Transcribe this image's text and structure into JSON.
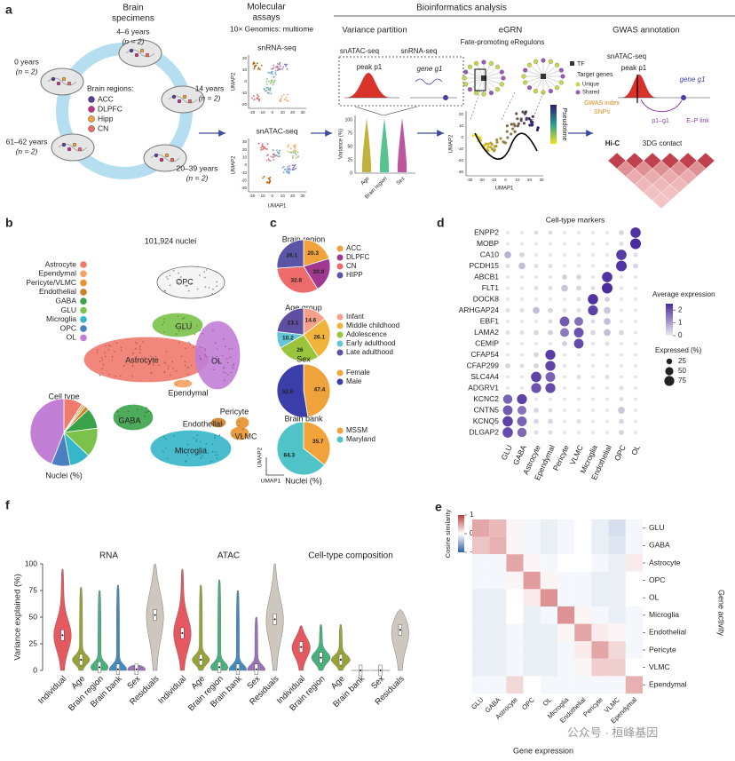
{
  "panel_a": {
    "label": "a",
    "specimens_title": [
      "Brain",
      "specimens"
    ],
    "groups": [
      {
        "age": "4–6 years",
        "n": "(n = 2)"
      },
      {
        "age": "0 years",
        "n": "(n = 2)"
      },
      {
        "age": "14 years",
        "n": "(n = 2)"
      },
      {
        "age": "61–62 years",
        "n": "(n = 2)"
      },
      {
        "age": "20–39 years",
        "n": "(n = 2)"
      }
    ],
    "regions_title": "Brain regions:",
    "regions": [
      {
        "name": "ACC",
        "color": "#5b3e96"
      },
      {
        "name": "DLPFC",
        "color": "#c2338a"
      },
      {
        "name": "Hipp",
        "color": "#f2a23a"
      },
      {
        "name": "CN",
        "color": "#ee6b6b"
      }
    ],
    "assays_title": [
      "Molecular",
      "assays"
    ],
    "platform": "10× Genomics: multiome",
    "umaps": [
      {
        "title": "snRNA-seq",
        "xticks": [
          -20,
          -10,
          0,
          10,
          20,
          30
        ],
        "yticks": [
          -20,
          -10,
          0,
          10,
          20
        ]
      },
      {
        "title": "snATAC-seq",
        "xticks": [
          -20,
          -10,
          0,
          10,
          20,
          30
        ],
        "yticks": [
          -30,
          -20,
          -10,
          0,
          10,
          20,
          30
        ]
      }
    ],
    "umap_x": "UMAP1",
    "umap_y": "UMAP2",
    "bio_title": "Bioinformatics analysis",
    "vp_title": "Variance partition",
    "vp_atac": "snATAC-seq",
    "vp_rna": "snRNA-seq",
    "peak": "peak p1",
    "gene": "gene g1",
    "vp_ylabel": "Variance (%)",
    "vp_yticks": [
      0,
      25,
      50,
      75,
      100
    ],
    "vp_categories": [
      "Age",
      "Brain region",
      "Sex"
    ],
    "egrn_title": "eGRN",
    "egrn_sub": "Fate-promoting eRegulons",
    "tf": "TF",
    "targets": "Target genes",
    "unique": "Unique",
    "shared": "Shared",
    "pseudotime": "Pseudotime",
    "egrn_xticks": [
      -30,
      -20,
      -10,
      0,
      10,
      20,
      30
    ],
    "egrn_yticks": [
      -30,
      -20,
      -10,
      0,
      10,
      20
    ],
    "gwas_title": "GWAS annotation",
    "gwas_atac": "snATAC-seq",
    "gwas_peak": "peak p1",
    "gwas_gene": "gene g1",
    "snps": [
      "GWAS index",
      "SNPs"
    ],
    "p1g1": "p1–g1",
    "ep": "E–P link",
    "hic": "Hi-C",
    "contact": "3DG contact"
  },
  "panel_b": {
    "label": "b",
    "nuclei": "101,924 nuclei",
    "clusters": [
      "OPC",
      "GLU",
      "Astrocyte",
      "OL",
      "Ependymal",
      "GABA",
      "Microglia",
      "Pericyte",
      "Endothelial",
      "VLMC"
    ],
    "umap_x": "UMAP1",
    "umap_y": "UMAP2"
  },
  "panel_c": {
    "label": "c",
    "footer": "Nuclei (%)"
  },
  "panel_d": {
    "label": "d"
  },
  "panel_e": {
    "label": "e"
  },
  "panel_f": {
    "label": "f"
  },
  "watermark": "公众号 · 桓峰基因",
  "chart_data": [
    {
      "type": "pie",
      "title": "Cell type",
      "footer": "Nuclei (%)",
      "show_values": false,
      "categories": [
        "Astrocyte",
        "Ependymal",
        "Pericyte/VLMC",
        "Endothelial",
        "GABA",
        "GLU",
        "Microglia",
        "OPC",
        "OL"
      ],
      "colors": [
        "#f07a6c",
        "#f4a462",
        "#e8922e",
        "#c9822c",
        "#3aa34a",
        "#7cc24a",
        "#36b6c9",
        "#4a7fc1",
        "#c27fd6"
      ],
      "values": [
        9,
        1,
        1,
        2,
        10,
        14,
        10,
        9,
        44
      ]
    },
    {
      "type": "pie",
      "title": "Brain region",
      "show_values": true,
      "categories": [
        "ACC",
        "DLPFC",
        "CN",
        "HIPP"
      ],
      "colors": [
        "#f2a23a",
        "#a0388f",
        "#ee6b6b",
        "#5b55a8"
      ],
      "values": [
        20.3,
        20.9,
        32.8,
        26.1
      ]
    },
    {
      "type": "pie",
      "title": "Age group",
      "show_values": true,
      "categories": [
        "Infant",
        "Middle childhood",
        "Adolescence",
        "Early adulthood",
        "Late adulthood"
      ],
      "colors": [
        "#f4a08a",
        "#f2b33a",
        "#9ac43c",
        "#62c6d8",
        "#5e4fa2"
      ],
      "values": [
        14.6,
        26.1,
        26.0,
        10.2,
        23.1
      ]
    },
    {
      "type": "pie",
      "title": "Sex",
      "show_values": true,
      "categories": [
        "Female",
        "Male"
      ],
      "colors": [
        "#f0a23b",
        "#3b3ea8"
      ],
      "values": [
        47.4,
        52.6
      ]
    },
    {
      "type": "pie",
      "title": "Brain bank",
      "show_values": true,
      "categories": [
        "MSSM",
        "Maryland"
      ],
      "colors": [
        "#f2a23a",
        "#4fc3c8"
      ],
      "values": [
        35.7,
        64.3
      ]
    },
    {
      "type": "dotplot",
      "title": "Cell-type markers",
      "genes": [
        "ENPP2",
        "MOBP",
        "CA10",
        "PCDH15",
        "ABCB1",
        "FLT1",
        "DOCK8",
        "ARHGAP24",
        "EBF1",
        "LAMA2",
        "CEMIP",
        "CFAP54",
        "CFAP299",
        "SLC4A4",
        "ADGRV1",
        "KCNC2",
        "CNTN5",
        "KCNQ5",
        "DLGAP2"
      ],
      "cell_types": [
        "GLU",
        "GABA",
        "Astrocyte",
        "Ependymal",
        "Pericyte",
        "VLMC",
        "Microglia",
        "Endothelial",
        "OPC",
        "OL"
      ],
      "expression": [
        [
          0.1,
          0.1,
          0.2,
          0.2,
          0.1,
          0.1,
          0.1,
          0.1,
          0.3,
          2.4
        ],
        [
          0.1,
          0.1,
          0.1,
          0.1,
          0.1,
          0.1,
          0.1,
          0.1,
          0.2,
          2.5
        ],
        [
          0.8,
          0.3,
          0.1,
          0.1,
          0.1,
          0.1,
          0.1,
          0.1,
          2.3,
          0.2
        ],
        [
          0.2,
          0.6,
          0.2,
          0.2,
          0.1,
          0.1,
          0.1,
          0.1,
          2.4,
          0.3
        ],
        [
          0.1,
          0.1,
          0.1,
          0.1,
          0.4,
          0.3,
          0.1,
          2.4,
          0.1,
          0.1
        ],
        [
          0.1,
          0.1,
          0.2,
          0.2,
          0.5,
          0.3,
          0.2,
          2.5,
          0.1,
          0.1
        ],
        [
          0.1,
          0.1,
          0.1,
          0.1,
          0.1,
          0.2,
          2.4,
          0.4,
          0.1,
          0.1
        ],
        [
          0.2,
          0.2,
          0.6,
          0.3,
          0.2,
          0.2,
          2.2,
          0.5,
          0.1,
          0.1
        ],
        [
          0.1,
          0.1,
          0.1,
          0.2,
          1.9,
          1.6,
          0.2,
          0.6,
          0.1,
          0.1
        ],
        [
          0.2,
          0.2,
          0.3,
          0.4,
          1.5,
          2.0,
          0.3,
          0.6,
          0.3,
          0.1
        ],
        [
          0.1,
          0.1,
          0.1,
          0.1,
          0.4,
          2.1,
          0.1,
          0.2,
          0.1,
          0.1
        ],
        [
          0.1,
          0.1,
          0.3,
          2.3,
          0.1,
          0.1,
          0.1,
          0.1,
          0.1,
          0.1
        ],
        [
          0.3,
          0.2,
          0.3,
          2.2,
          0.1,
          0.1,
          0.1,
          0.1,
          0.1,
          0.1
        ],
        [
          0.1,
          0.1,
          2.2,
          1.8,
          0.1,
          0.2,
          0.1,
          0.2,
          0.1,
          0.1
        ],
        [
          0.1,
          0.1,
          2.0,
          2.1,
          0.1,
          0.1,
          0.1,
          0.1,
          0.2,
          0.1
        ],
        [
          1.8,
          2.2,
          0.1,
          0.1,
          0.1,
          0.1,
          0.1,
          0.1,
          0.2,
          0.1
        ],
        [
          1.9,
          1.6,
          0.3,
          0.2,
          0.1,
          0.1,
          0.1,
          0.1,
          0.5,
          0.1
        ],
        [
          2.2,
          1.8,
          0.3,
          0.3,
          0.1,
          0.2,
          0.1,
          0.1,
          0.3,
          0.1
        ],
        [
          2.1,
          1.7,
          0.2,
          0.2,
          0.1,
          0.1,
          0.1,
          0.1,
          0.3,
          0.1
        ]
      ],
      "percent": [
        [
          10,
          10,
          15,
          15,
          10,
          10,
          10,
          10,
          20,
          80
        ],
        [
          10,
          10,
          10,
          10,
          10,
          10,
          10,
          10,
          15,
          85
        ],
        [
          35,
          20,
          10,
          10,
          10,
          10,
          10,
          10,
          80,
          15
        ],
        [
          15,
          35,
          15,
          15,
          10,
          10,
          10,
          10,
          85,
          20
        ],
        [
          10,
          10,
          10,
          10,
          20,
          20,
          10,
          80,
          10,
          10
        ],
        [
          10,
          10,
          15,
          15,
          35,
          20,
          15,
          85,
          10,
          10
        ],
        [
          10,
          10,
          10,
          10,
          10,
          15,
          80,
          20,
          10,
          10
        ],
        [
          15,
          15,
          35,
          20,
          15,
          15,
          75,
          35,
          10,
          10
        ],
        [
          10,
          10,
          10,
          15,
          70,
          60,
          15,
          35,
          10,
          10
        ],
        [
          15,
          15,
          20,
          20,
          60,
          70,
          20,
          35,
          20,
          10
        ],
        [
          10,
          10,
          10,
          10,
          20,
          70,
          10,
          15,
          10,
          10
        ],
        [
          10,
          10,
          20,
          75,
          10,
          10,
          10,
          10,
          10,
          10
        ],
        [
          20,
          15,
          20,
          75,
          10,
          10,
          10,
          10,
          10,
          10
        ],
        [
          10,
          10,
          80,
          70,
          10,
          15,
          10,
          15,
          10,
          10
        ],
        [
          10,
          10,
          75,
          75,
          10,
          10,
          10,
          10,
          15,
          10
        ],
        [
          65,
          75,
          10,
          10,
          10,
          10,
          10,
          10,
          15,
          10
        ],
        [
          70,
          60,
          20,
          15,
          10,
          10,
          10,
          10,
          35,
          10
        ],
        [
          80,
          70,
          20,
          20,
          10,
          15,
          10,
          10,
          20,
          10
        ],
        [
          80,
          65,
          15,
          15,
          10,
          10,
          10,
          10,
          20,
          10
        ]
      ],
      "color_label": "Average expression",
      "clim": [
        0,
        2.5
      ],
      "cticks": [
        0,
        1,
        2
      ],
      "color_low": "#ececec",
      "color_high": "#4b2c9e",
      "size_label": "Expressed (%)",
      "size_ticks": [
        25,
        50,
        75
      ]
    },
    {
      "type": "heatmap",
      "rows": [
        "GLU",
        "GABA",
        "Astrocyte",
        "OPC",
        "OL",
        "Microglia",
        "Endothelial",
        "Pericyte",
        "VLMC",
        "Ependymal"
      ],
      "columns": [
        "GLU",
        "GABA",
        "Astrocyte",
        "OPC",
        "OL",
        "Microglia",
        "Endothelial",
        "Pericyte",
        "VLMC",
        "Ependymal"
      ],
      "values": [
        [
          0.45,
          0.35,
          0.05,
          -0.05,
          -0.1,
          -0.05,
          0,
          -0.1,
          -0.2,
          -0.05
        ],
        [
          0.3,
          0.4,
          0.05,
          -0.05,
          -0.1,
          -0.05,
          0,
          -0.1,
          -0.15,
          -0.05
        ],
        [
          -0.05,
          -0.05,
          0.45,
          0.05,
          -0.05,
          0,
          0,
          -0.05,
          -0.1,
          0.1
        ],
        [
          -0.05,
          -0.05,
          0.05,
          0.5,
          0.05,
          -0.05,
          -0.05,
          -0.1,
          -0.1,
          0
        ],
        [
          -0.1,
          -0.1,
          0,
          0.1,
          0.55,
          -0.05,
          -0.05,
          -0.1,
          -0.1,
          0
        ],
        [
          -0.1,
          -0.1,
          0,
          -0.1,
          -0.05,
          0.55,
          0.05,
          -0.05,
          -0.1,
          -0.05
        ],
        [
          -0.1,
          -0.1,
          -0.05,
          -0.1,
          -0.1,
          0.05,
          0.45,
          0.1,
          0.05,
          -0.05
        ],
        [
          -0.1,
          -0.1,
          -0.05,
          -0.1,
          -0.1,
          -0.05,
          0.1,
          0.45,
          0.2,
          -0.05
        ],
        [
          -0.1,
          -0.1,
          -0.05,
          -0.1,
          -0.1,
          -0.05,
          0.05,
          0.25,
          0.25,
          0
        ],
        [
          -0.05,
          -0.05,
          0.2,
          0,
          -0.05,
          -0.05,
          -0.05,
          -0.05,
          -0.05,
          0.4
        ]
      ],
      "clim": [
        -1,
        1
      ],
      "cticks": [
        1,
        0,
        {
          "value": -1,
          "label": "−1"
        }
      ],
      "colors": [
        "#2c5ea8",
        "#ffffff",
        "#c23b3b"
      ],
      "color_label": "Cosine similarity",
      "x_label": "Gene expression",
      "y_label": "Gene activity"
    },
    {
      "type": "violin",
      "title": "RNA",
      "ylabel": "Variance explained (%)",
      "categories": [
        "Individual",
        "Age",
        "Brain region",
        "Brain bank",
        "Sex",
        "Residuals"
      ],
      "colors": [
        "#e3474e",
        "#8c9a1e",
        "#35a86c",
        "#2f7fb8",
        "#8e63b0",
        "#c8c2b6"
      ],
      "medians": [
        33,
        10,
        3,
        1,
        1,
        52
      ],
      "maxima": [
        95,
        78,
        75,
        80,
        5,
        100
      ],
      "ylim": [
        0,
        100
      ],
      "yticks": [
        0,
        25,
        50,
        75,
        100
      ]
    },
    {
      "type": "violin",
      "title": "ATAC",
      "categories": [
        "Individual",
        "Age",
        "Brain region",
        "Brain bank",
        "Sex",
        "Residuals"
      ],
      "colors": [
        "#e3474e",
        "#8c9a1e",
        "#35a86c",
        "#2f7fb8",
        "#8e63b0",
        "#c8c2b6"
      ],
      "medians": [
        35,
        10,
        3,
        1,
        1,
        48
      ],
      "maxima": [
        95,
        80,
        85,
        75,
        50,
        100
      ],
      "ylim": [
        0,
        100
      ]
    },
    {
      "type": "violin",
      "title": "Cell-type composition",
      "categories": [
        "Individual",
        "Brain region",
        "Age",
        "Brain bank",
        "Sex",
        "Residuals"
      ],
      "colors": [
        "#e3474e",
        "#35a86c",
        "#8c9a1e",
        "#2f7fb8",
        "#8e63b0",
        "#c8c2b6"
      ],
      "medians": [
        22,
        12,
        10,
        0,
        0,
        38
      ],
      "maxima": [
        42,
        43,
        43,
        0,
        0,
        57
      ],
      "ylim": [
        0,
        100
      ]
    }
  ]
}
